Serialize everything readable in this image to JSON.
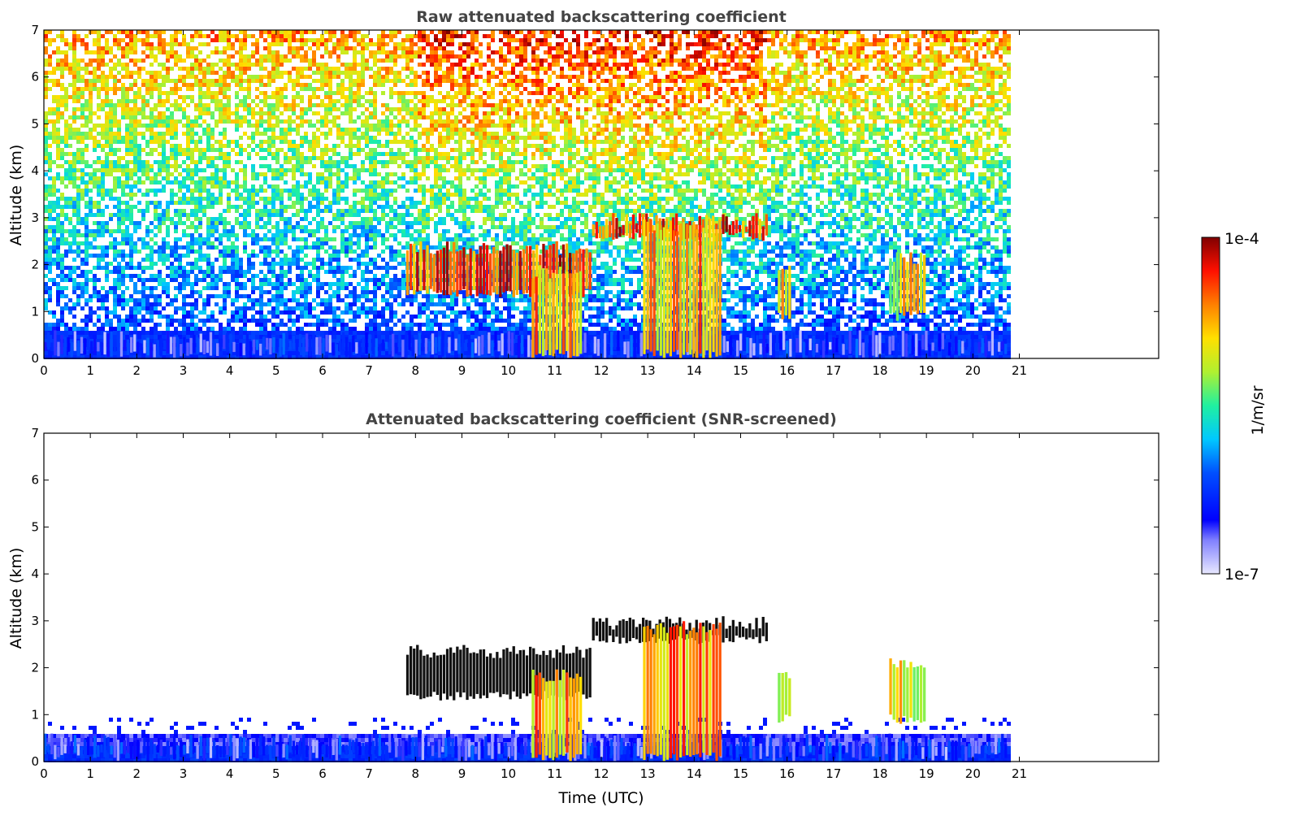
{
  "chart_data": [
    {
      "type": "heatmap",
      "title": "Raw attenuated backscattering coefficient",
      "xlabel": "",
      "ylabel": "Altitude (km)",
      "xlim": [
        0,
        24
      ],
      "ylim": [
        0,
        7
      ],
      "x_ticks": [
        "0",
        "1",
        "2",
        "3",
        "4",
        "5",
        "6",
        "7",
        "8",
        "9",
        "10",
        "11",
        "12",
        "13",
        "14",
        "15",
        "16",
        "17",
        "18",
        "19",
        "20",
        "21"
      ],
      "y_ticks": [
        "0",
        "1",
        "2",
        "3",
        "4",
        "5",
        "6",
        "7"
      ],
      "data_end_time": 20.75,
      "features": [
        {
          "name": "boundary layer",
          "t_start": 0,
          "t_end": 20.75,
          "alt_top": 0.6,
          "level": "1e-6"
        },
        {
          "name": "cloud layer",
          "t_start": 7.8,
          "t_end": 11.8,
          "alt_bottom": 1.3,
          "alt_top": 2.5,
          "level": "1e-4"
        },
        {
          "name": "cloud layer",
          "t_start": 11.8,
          "t_end": 15.6,
          "alt_bottom": 2.5,
          "alt_top": 3.1,
          "level": "1e-4"
        },
        {
          "name": "precipitation",
          "t_start": 10.5,
          "t_end": 11.6,
          "alt_bottom": 0,
          "alt_top": 2.0,
          "level": "5e-5"
        },
        {
          "name": "precipitation",
          "t_start": 12.9,
          "t_end": 14.6,
          "alt_bottom": 0,
          "alt_top": 3.0,
          "level": "5e-5"
        },
        {
          "name": "precipitation",
          "t_start": 15.8,
          "t_end": 16.1,
          "alt_bottom": 0.8,
          "alt_top": 2.0,
          "level": "3e-5"
        },
        {
          "name": "precipitation",
          "t_start": 18.2,
          "t_end": 19.0,
          "alt_bottom": 0.8,
          "alt_top": 2.3,
          "level": "3e-5"
        }
      ]
    },
    {
      "type": "heatmap",
      "title": "Attenuated backscattering coefficient (SNR-screened)",
      "xlabel": "Time (UTC)",
      "ylabel": "Altitude (km)",
      "xlim": [
        0,
        24
      ],
      "ylim": [
        0,
        7
      ],
      "x_ticks": [
        "0",
        "1",
        "2",
        "3",
        "4",
        "5",
        "6",
        "7",
        "8",
        "9",
        "10",
        "11",
        "12",
        "13",
        "14",
        "15",
        "16",
        "17",
        "18",
        "19",
        "20",
        "21"
      ],
      "y_ticks": [
        "0",
        "1",
        "2",
        "3",
        "4",
        "5",
        "6",
        "7"
      ],
      "data_end_time": 20.75,
      "screened": true
    }
  ],
  "colorbar": {
    "max_label": "1e-4",
    "min_label": "1e-7",
    "label": "1/m/sr",
    "colormap": "jet",
    "low_color": "#e8e8ff",
    "high_color": "#800000"
  }
}
